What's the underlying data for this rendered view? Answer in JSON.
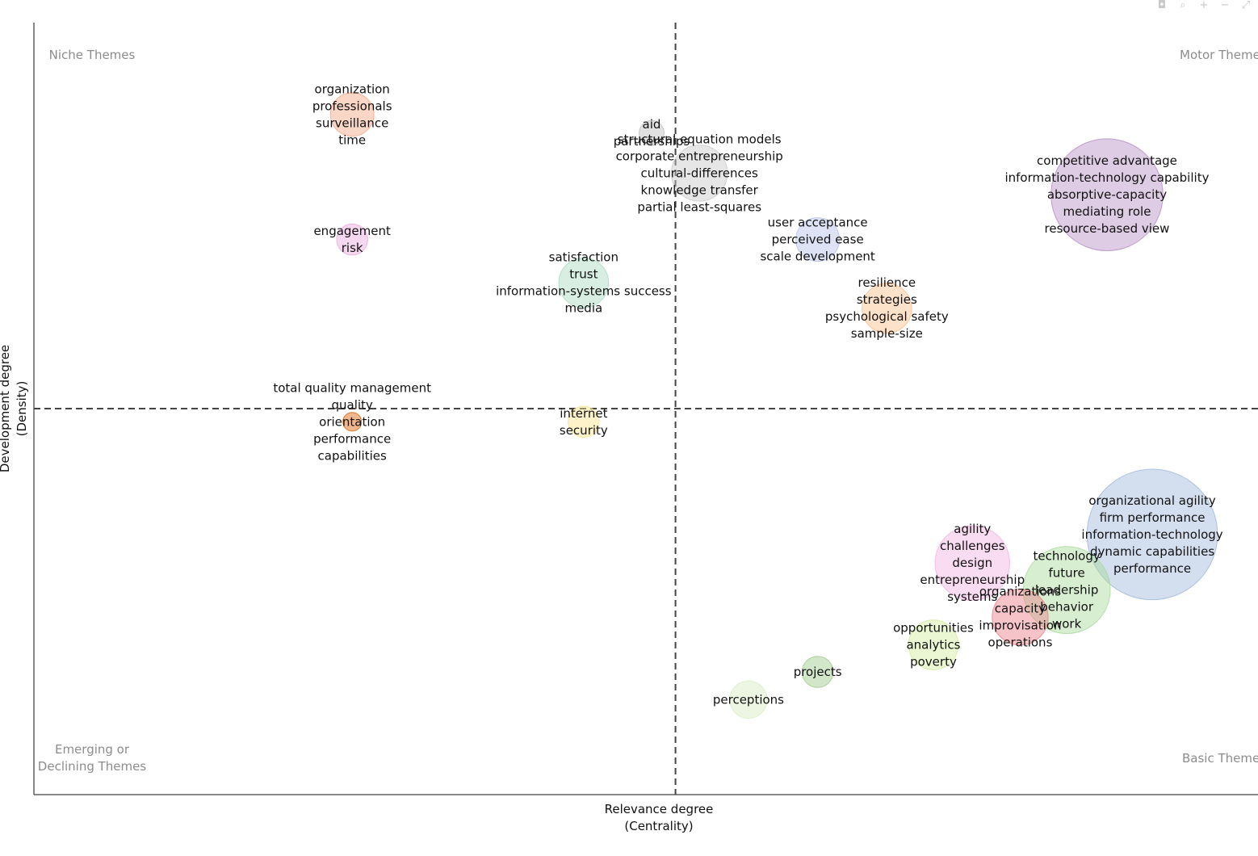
{
  "modebar": {
    "icons": [
      {
        "name": "camera-icon",
        "glyph": "◘"
      },
      {
        "name": "zoom-icon",
        "glyph": "⌕"
      },
      {
        "name": "zoom-in-icon",
        "glyph": "+"
      },
      {
        "name": "zoom-out-icon",
        "glyph": "−"
      },
      {
        "name": "autoscale-icon",
        "glyph": "⤢"
      }
    ]
  },
  "chart_data": {
    "type": "scatter",
    "title": "",
    "xlabel": [
      "Relevance degree",
      "(Centrality)"
    ],
    "ylabel": [
      "Development degree",
      "(Density)"
    ],
    "xlim": [
      0,
      100
    ],
    "ylim": [
      0,
      100
    ],
    "median_x": 51,
    "median_y": 50,
    "quadrants": {
      "top_left": [
        "Niche Themes"
      ],
      "top_right": [
        "Motor Themes"
      ],
      "bottom_left": [
        "Emerging or",
        "Declining Themes"
      ],
      "bottom_right": [
        "Basic Themes"
      ]
    },
    "clusters": [
      {
        "labels": [
          "organization",
          "professionals",
          "surveillance",
          "time"
        ],
        "x": 25.3,
        "y": 88.1,
        "size": 3.5,
        "color": "#f4a582"
      },
      {
        "labels": [
          "aid",
          "partnerships"
        ],
        "x": 49.1,
        "y": 85.7,
        "size": 2.0,
        "color": "#bdbdbd"
      },
      {
        "labels": [
          "structural equation models",
          "corporate entrepreneurship",
          "cultural-differences",
          "knowledge transfer",
          "partial least-squares"
        ],
        "x": 52.9,
        "y": 80.5,
        "size": 4.5,
        "color": "#c7c7c7"
      },
      {
        "labels": [
          "competitive advantage",
          "information-technology capability",
          "absorptive-capacity",
          "mediating role",
          "resource-based view"
        ],
        "x": 85.3,
        "y": 77.7,
        "size": 9.0,
        "color": "#b58bc4"
      },
      {
        "labels": [
          "engagement",
          "risk"
        ],
        "x": 25.3,
        "y": 71.9,
        "size": 2.5,
        "color": "#e8a7dc"
      },
      {
        "labels": [
          "user acceptance",
          "perceived ease",
          "scale development"
        ],
        "x": 62.3,
        "y": 71.9,
        "size": 3.5,
        "color": "#b3bfe6"
      },
      {
        "labels": [
          "satisfaction",
          "trust",
          "information-systems success",
          "media"
        ],
        "x": 43.7,
        "y": 66.3,
        "size": 4.0,
        "color": "#a8d9c0"
      },
      {
        "labels": [
          "resilience",
          "strategies",
          "psychological safety",
          "sample-size"
        ],
        "x": 67.8,
        "y": 63.0,
        "size": 4.0,
        "color": "#fdbd88"
      },
      {
        "labels": [
          "total quality management",
          "quality",
          "orientation",
          "performance",
          "capabilities"
        ],
        "x": 25.3,
        "y": 48.3,
        "size": 1.5,
        "color": "#d95f02"
      },
      {
        "labels": [
          "internet",
          "security"
        ],
        "x": 43.7,
        "y": 48.3,
        "size": 2.5,
        "color": "#fbe38a"
      },
      {
        "labels": [
          "organizational agility",
          "firm performance",
          "information-technology",
          "dynamic capabilities",
          "performance"
        ],
        "x": 88.9,
        "y": 33.7,
        "size": 10.5,
        "color": "#9db6dc"
      },
      {
        "labels": [
          "agility",
          "challenges",
          "design",
          "entrepreneurship",
          "systems"
        ],
        "x": 74.6,
        "y": 30.0,
        "size": 6.0,
        "color": "#f1b2e0"
      },
      {
        "labels": [
          "technology",
          "future",
          "leadership",
          "behavior",
          "work"
        ],
        "x": 82.1,
        "y": 26.5,
        "size": 7.0,
        "color": "#a6d99a"
      },
      {
        "labels": [
          "organizations",
          "capacity",
          "improvisation",
          "operations"
        ],
        "x": 78.4,
        "y": 23.0,
        "size": 4.5,
        "color": "#ec7d86"
      },
      {
        "labels": [
          "opportunities",
          "analytics",
          "poverty"
        ],
        "x": 71.5,
        "y": 19.4,
        "size": 4.0,
        "color": "#d3ea9b"
      },
      {
        "labels": [
          "projects"
        ],
        "x": 62.3,
        "y": 15.9,
        "size": 2.5,
        "color": "#9bc98a"
      },
      {
        "labels": [
          "perceptions"
        ],
        "x": 56.8,
        "y": 12.3,
        "size": 3.0,
        "color": "#d8ecbe"
      }
    ]
  }
}
